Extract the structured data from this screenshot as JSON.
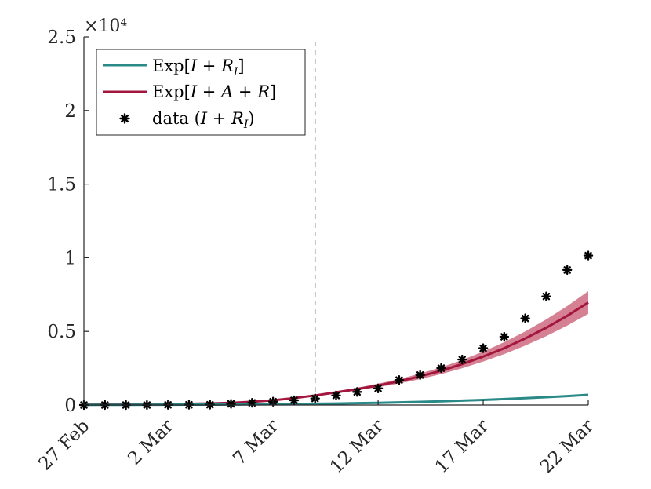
{
  "chart_data": {
    "type": "line",
    "x_axis": {
      "ticks": [
        0,
        4,
        9,
        14,
        19,
        24
      ],
      "tick_labels": [
        "27 Feb",
        "2 Mar",
        "7 Mar",
        "12 Mar",
        "17 Mar",
        "22 Mar"
      ],
      "range": [
        0,
        24
      ]
    },
    "y_axis": {
      "range": [
        0,
        25000
      ],
      "ticks": [
        0,
        5000,
        10000,
        15000,
        20000,
        25000
      ],
      "tick_labels": [
        "0",
        "0.5",
        "1",
        "1.5",
        "2",
        "2.5"
      ],
      "exponent_label": "×10⁴"
    },
    "vertical_line_x": 11,
    "legend": {
      "position": "top-left",
      "entries": [
        {
          "key": "exp_ir",
          "label": "Exp[I + R_I]",
          "color": "#2a8a87",
          "marker": "line"
        },
        {
          "key": "exp_iar",
          "label": "Exp[I + A + R]",
          "color": "#a3173f",
          "marker": "line"
        },
        {
          "key": "data",
          "label": "data (I + R_I)",
          "color": "#000000",
          "marker": "asterisk"
        }
      ]
    },
    "x": [
      0,
      1,
      2,
      3,
      4,
      5,
      6,
      7,
      8,
      9,
      10,
      11,
      12,
      13,
      14,
      15,
      16,
      17,
      18,
      19,
      20,
      21,
      22,
      23,
      24
    ],
    "series": [
      {
        "key": "exp_iar",
        "color": "#a3173f",
        "band_color": "#c7566f",
        "values": [
          20,
          25,
          35,
          45,
          60,
          80,
          105,
          150,
          220,
          320,
          470,
          650,
          860,
          1080,
          1330,
          1610,
          1950,
          2330,
          2780,
          3290,
          3860,
          4520,
          5250,
          6060,
          6960
        ],
        "lower": [
          20,
          25,
          35,
          45,
          60,
          80,
          105,
          150,
          220,
          320,
          470,
          600,
          790,
          990,
          1210,
          1460,
          1760,
          2100,
          2500,
          2950,
          3460,
          4040,
          4680,
          5400,
          6190
        ],
        "upper": [
          20,
          25,
          35,
          45,
          60,
          80,
          105,
          150,
          220,
          320,
          470,
          700,
          930,
          1170,
          1450,
          1760,
          2140,
          2560,
          3060,
          3630,
          4270,
          5000,
          5820,
          6720,
          7730
        ]
      },
      {
        "key": "exp_ir",
        "color": "#2a8a87",
        "band_color": "#7fc4c0",
        "values": [
          10,
          12,
          14,
          17,
          20,
          24,
          30,
          36,
          44,
          55,
          68,
          84,
          102,
          124,
          150,
          180,
          214,
          253,
          298,
          348,
          404,
          466,
          534,
          609,
          690
        ],
        "lower": [
          10,
          12,
          14,
          17,
          20,
          24,
          30,
          36,
          44,
          55,
          68,
          78,
          94,
          114,
          138,
          165,
          196,
          232,
          272,
          318,
          368,
          424,
          486,
          553,
          626
        ],
        "upper": [
          10,
          12,
          14,
          17,
          20,
          24,
          30,
          36,
          44,
          55,
          68,
          90,
          110,
          134,
          162,
          195,
          232,
          274,
          323,
          378,
          440,
          508,
          583,
          665,
          754
        ]
      },
      {
        "key": "data",
        "values": [
          0,
          0,
          0,
          0,
          12,
          17,
          21,
          79,
          150,
          227,
          320,
          445,
          650,
          888,
          1128,
          1694,
          2036,
          2502,
          3089,
          3858,
          4636,
          5883,
          7375,
          9172,
          10149
        ]
      }
    ]
  }
}
